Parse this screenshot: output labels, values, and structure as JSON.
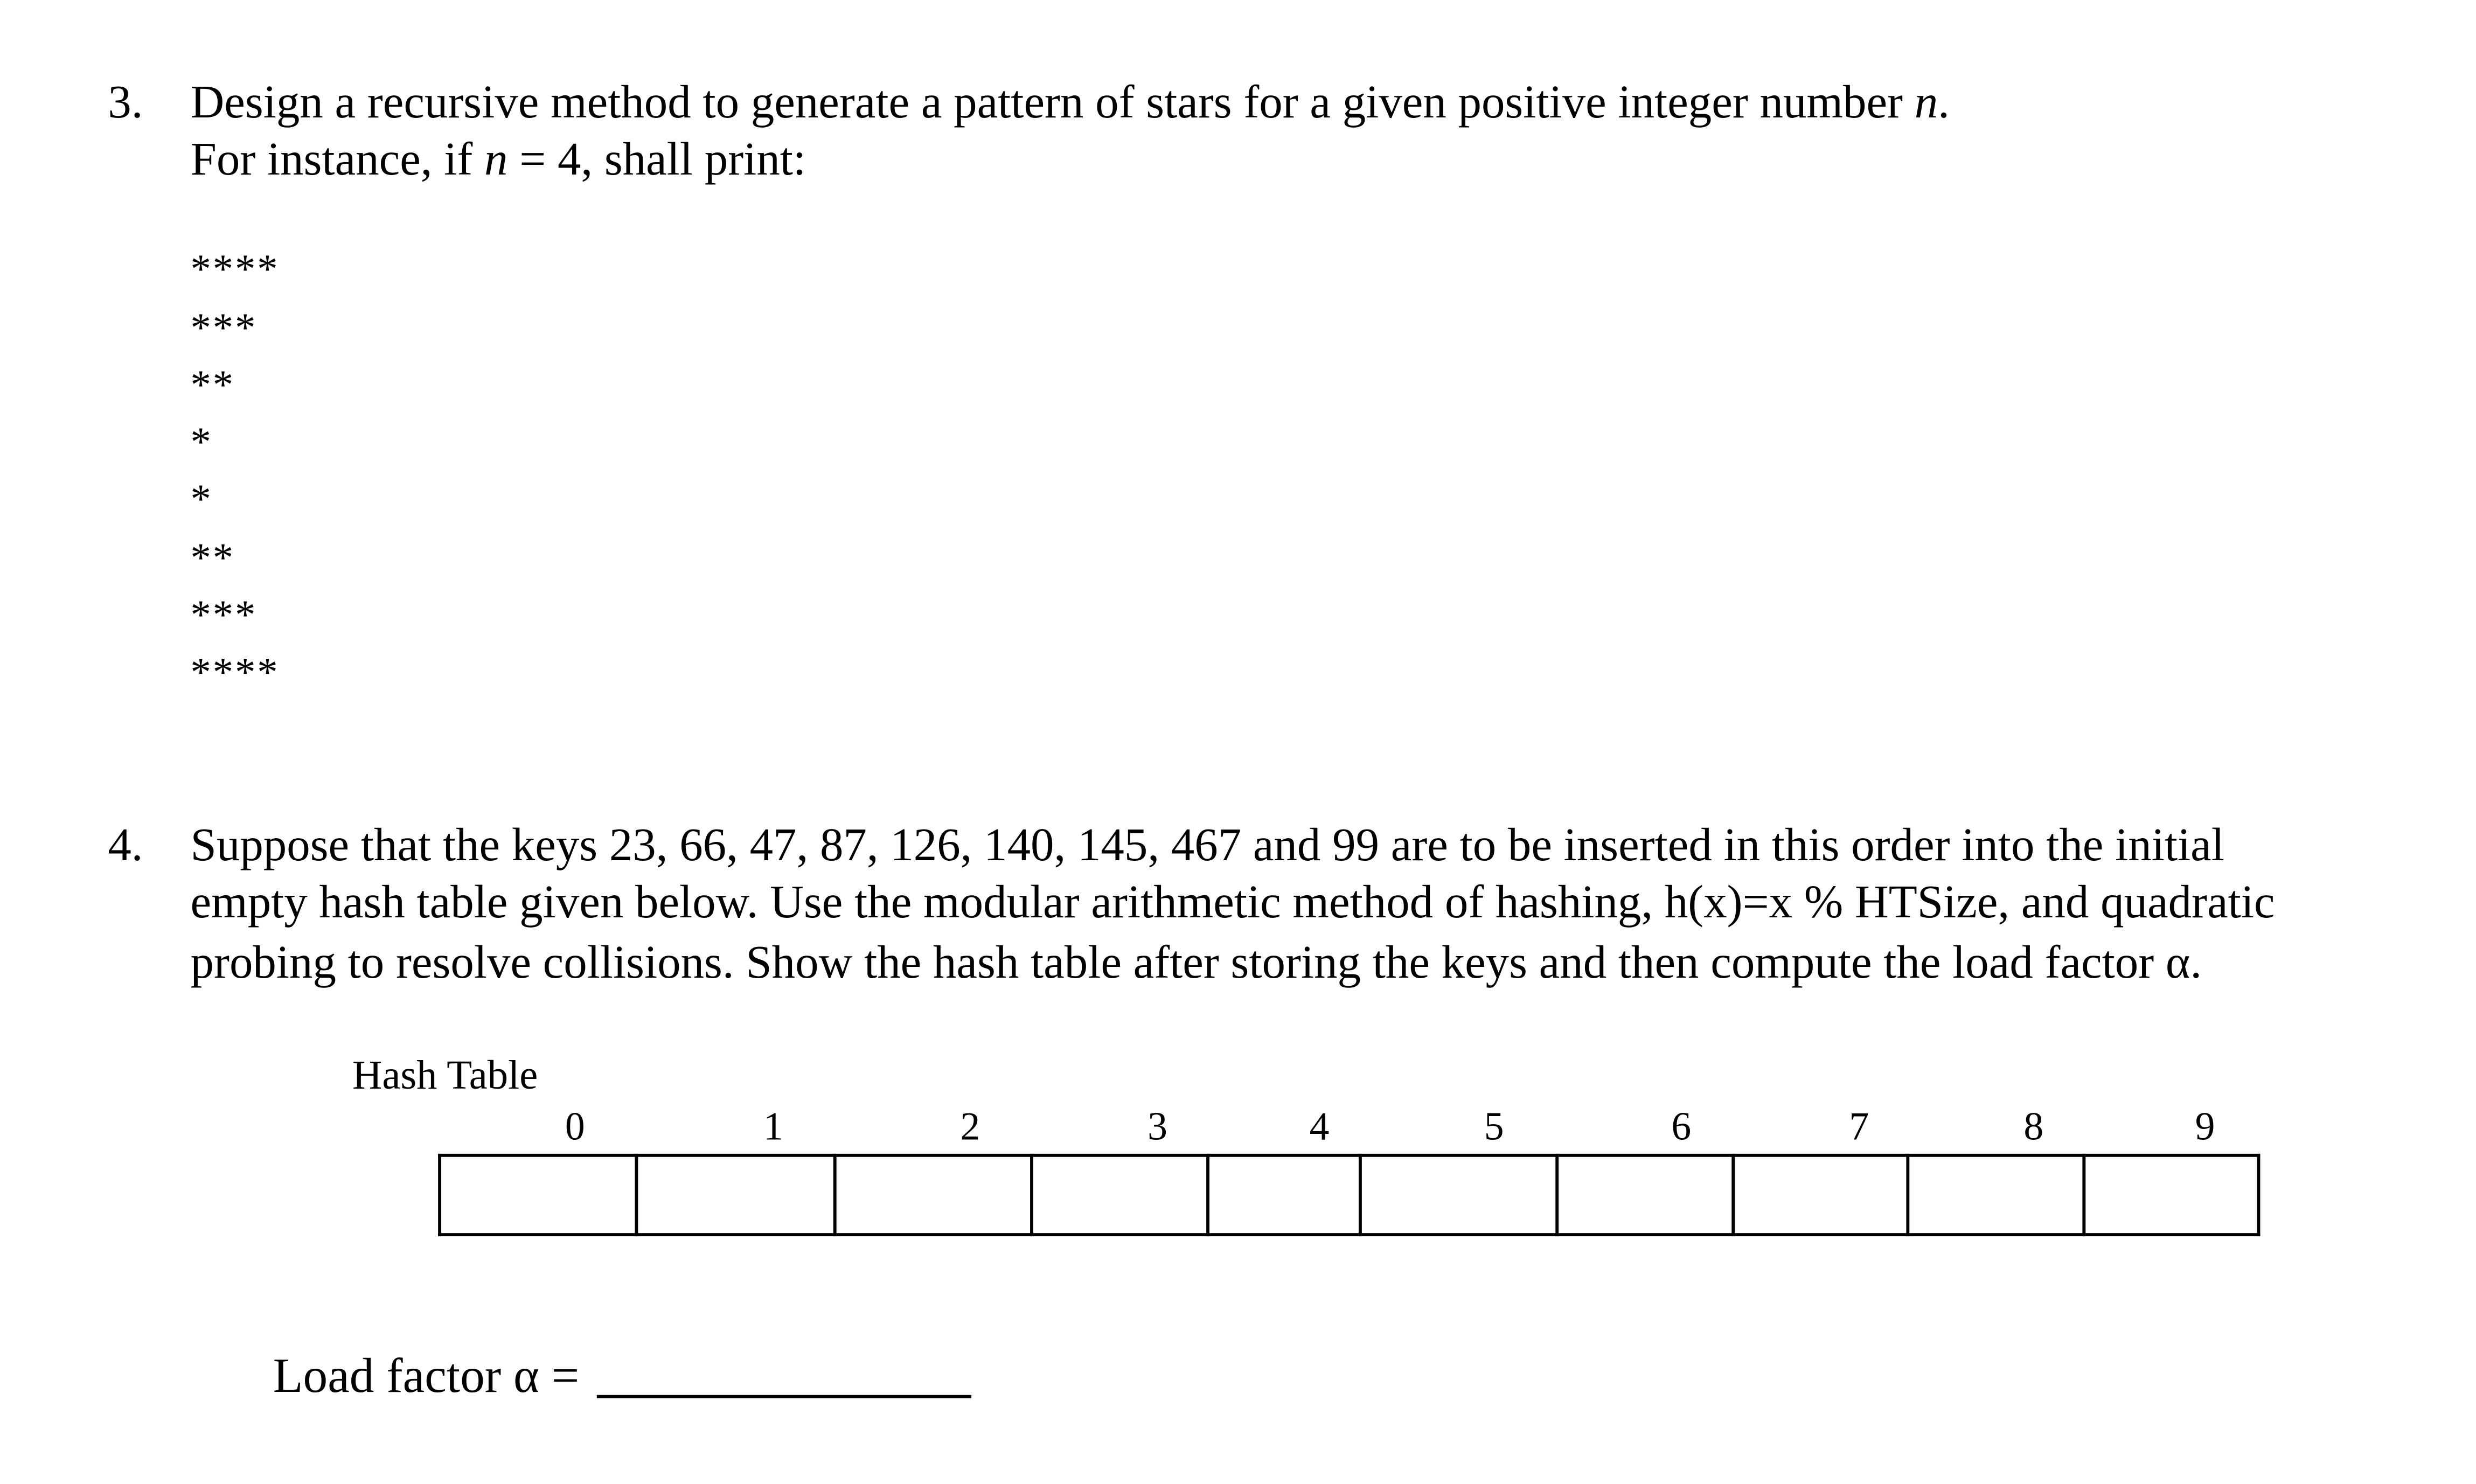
{
  "q3": {
    "number": "3.",
    "line1": "Design a recursive method to generate a pattern of stars for a given positive integer number ",
    "var": "n",
    "line1_end": ".",
    "line2_a": "For instance, if ",
    "line2_var": "n",
    "line2_b": " = 4, shall print:",
    "pattern": [
      "****",
      "***",
      "**",
      "*",
      "*",
      "**",
      "***",
      "****"
    ]
  },
  "q4": {
    "number": "4.",
    "lines": [
      "Suppose that the keys 23, 66, 47, 87, 126, 140, 145, 467 and 99 are to be inserted in this order into the initial",
      "empty hash table given below. Use the modular arithmetic method of hashing, h(x)=x % HTSize, and quadratic",
      "probing to resolve collisions. Show the hash table after storing the keys and then compute the load factor α."
    ],
    "table_label": "Hash Table",
    "indices": [
      "0",
      "1",
      "2",
      "3",
      "4",
      "5",
      "6",
      "7",
      "8",
      "9"
    ],
    "cells": [
      "",
      "",
      "",
      "",
      "",
      "",
      "",
      "",
      "",
      ""
    ],
    "load_factor_label": "Load factor α =",
    "load_factor_value": ""
  }
}
